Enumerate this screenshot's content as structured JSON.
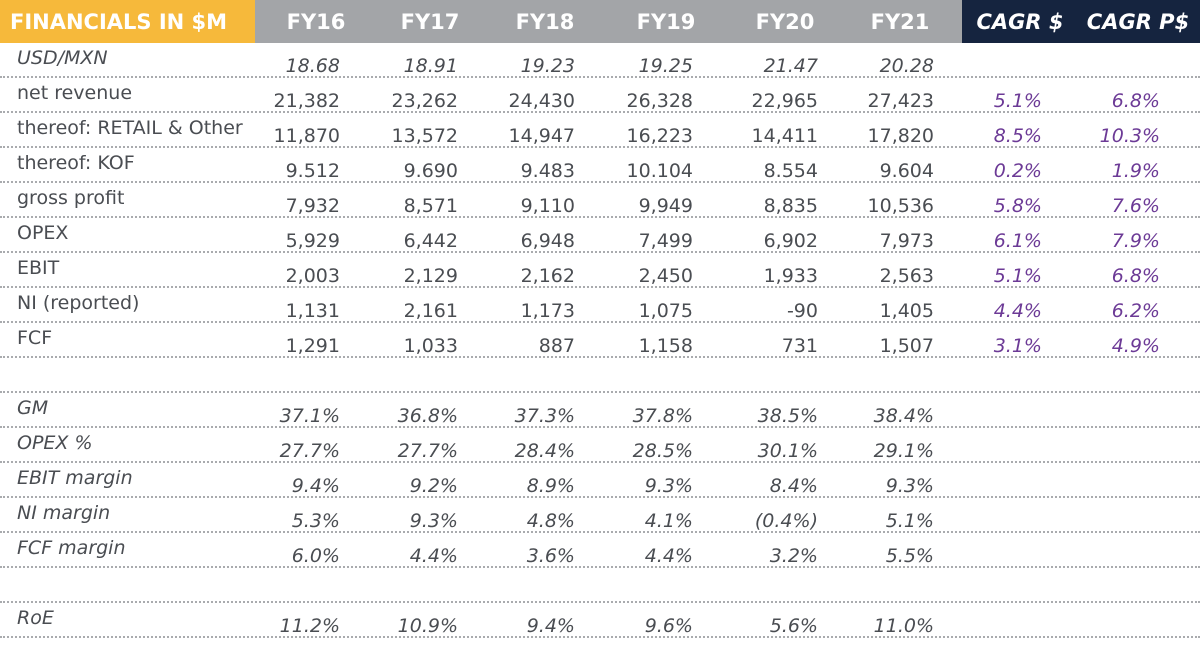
{
  "chart_data": {
    "type": "table",
    "title": "FINANCIALS IN $M",
    "columns": [
      "FY16",
      "FY17",
      "FY18",
      "FY19",
      "FY20",
      "FY21"
    ],
    "cagr_columns": [
      "CAGR $",
      "CAGR P$"
    ],
    "rows": [
      {
        "label": "USD/MXN",
        "italic": true,
        "values": [
          "18.68",
          "18.91",
          "19.23",
          "19.25",
          "21.47",
          "20.28"
        ],
        "cagr": [
          "",
          ""
        ]
      },
      {
        "label": "net revenue",
        "italic": false,
        "values": [
          "21,382",
          "23,262",
          "24,430",
          "26,328",
          "22,965",
          "27,423"
        ],
        "cagr": [
          "5.1%",
          "6.8%"
        ]
      },
      {
        "label": "thereof: RETAIL & Other",
        "italic": false,
        "values": [
          "11,870",
          "13,572",
          "14,947",
          "16,223",
          "14,411",
          "17,820"
        ],
        "cagr": [
          "8.5%",
          "10.3%"
        ]
      },
      {
        "label": "thereof: KOF",
        "italic": false,
        "values": [
          "9.512",
          "9.690",
          "9.483",
          "10.104",
          "8.554",
          "9.604"
        ],
        "cagr": [
          "0.2%",
          "1.9%"
        ]
      },
      {
        "label": "gross profit",
        "italic": false,
        "values": [
          "7,932",
          "8,571",
          "9,110",
          "9,949",
          "8,835",
          "10,536"
        ],
        "cagr": [
          "5.8%",
          "7.6%"
        ]
      },
      {
        "label": "OPEX",
        "italic": false,
        "values": [
          "5,929",
          "6,442",
          "6,948",
          "7,499",
          "6,902",
          "7,973"
        ],
        "cagr": [
          "6.1%",
          "7.9%"
        ]
      },
      {
        "label": "EBIT",
        "italic": false,
        "values": [
          "2,003",
          "2,129",
          "2,162",
          "2,450",
          "1,933",
          "2,563"
        ],
        "cagr": [
          "5.1%",
          "6.8%"
        ]
      },
      {
        "label": "NI (reported)",
        "italic": false,
        "values": [
          "1,131",
          "2,161",
          "1,173",
          "1,075",
          "-90",
          "1,405"
        ],
        "cagr": [
          "4.4%",
          "6.2%"
        ]
      },
      {
        "label": "FCF",
        "italic": false,
        "values": [
          "1,291",
          "1,033",
          "887",
          "1,158",
          "731",
          "1,507"
        ],
        "cagr": [
          "3.1%",
          "4.9%"
        ]
      },
      {
        "label": "",
        "italic": false,
        "values": [
          "",
          "",
          "",
          "",
          "",
          ""
        ],
        "cagr": [
          "",
          ""
        ]
      },
      {
        "label": "GM",
        "italic": true,
        "values": [
          "37.1%",
          "36.8%",
          "37.3%",
          "37.8%",
          "38.5%",
          "38.4%"
        ],
        "cagr": [
          "",
          ""
        ]
      },
      {
        "label": "OPEX %",
        "italic": true,
        "values": [
          "27.7%",
          "27.7%",
          "28.4%",
          "28.5%",
          "30.1%",
          "29.1%"
        ],
        "cagr": [
          "",
          ""
        ]
      },
      {
        "label": "EBIT margin",
        "italic": true,
        "values": [
          "9.4%",
          "9.2%",
          "8.9%",
          "9.3%",
          "8.4%",
          "9.3%"
        ],
        "cagr": [
          "",
          ""
        ]
      },
      {
        "label": "NI margin",
        "italic": true,
        "values": [
          "5.3%",
          "9.3%",
          "4.8%",
          "4.1%",
          "(0.4%)",
          "5.1%"
        ],
        "cagr": [
          "",
          ""
        ]
      },
      {
        "label": "FCF margin",
        "italic": true,
        "values": [
          "6.0%",
          "4.4%",
          "3.6%",
          "4.4%",
          "3.2%",
          "5.5%"
        ],
        "cagr": [
          "",
          ""
        ]
      },
      {
        "label": "",
        "italic": false,
        "values": [
          "",
          "",
          "",
          "",
          "",
          ""
        ],
        "cagr": [
          "",
          ""
        ]
      },
      {
        "label": "RoE",
        "italic": true,
        "values": [
          "11.2%",
          "10.9%",
          "9.4%",
          "9.6%",
          "5.6%",
          "11.0%"
        ],
        "cagr": [
          "",
          ""
        ]
      }
    ]
  }
}
